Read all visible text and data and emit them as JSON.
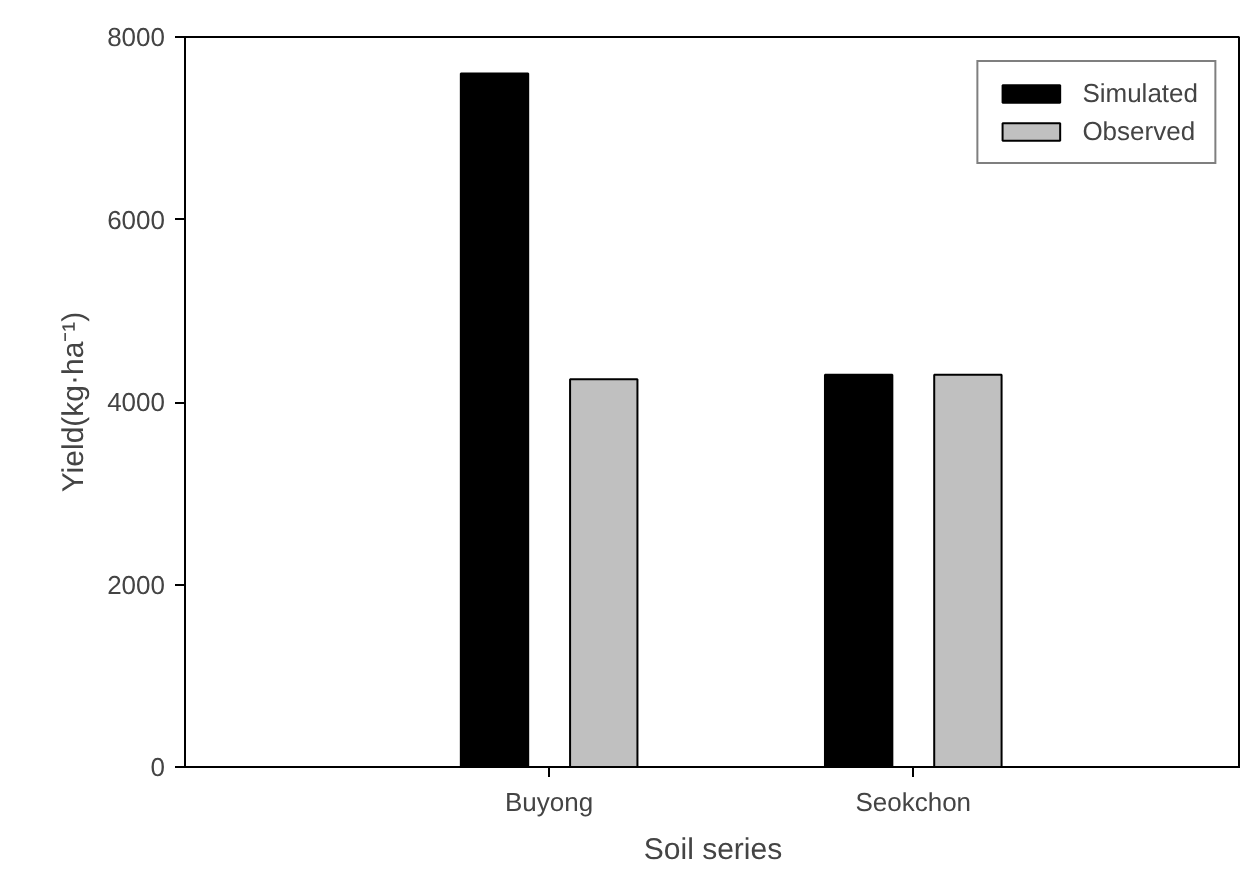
{
  "chart_data": {
    "type": "bar",
    "xlabel": "Soil series",
    "ylabel": "Yield(kg·ha⁻¹)",
    "categories": [
      "Buyong",
      "Seokchon"
    ],
    "series": [
      {
        "name": "Simulated",
        "color": "#000000",
        "values": [
          7600,
          4300
        ]
      },
      {
        "name": "Observed",
        "color": "#c0c0c0",
        "values": [
          4250,
          4300
        ]
      }
    ],
    "ylim": [
      0,
      8000
    ],
    "yticks": [
      0,
      2000,
      4000,
      6000,
      8000
    ],
    "grid": false,
    "legend": "top right"
  }
}
